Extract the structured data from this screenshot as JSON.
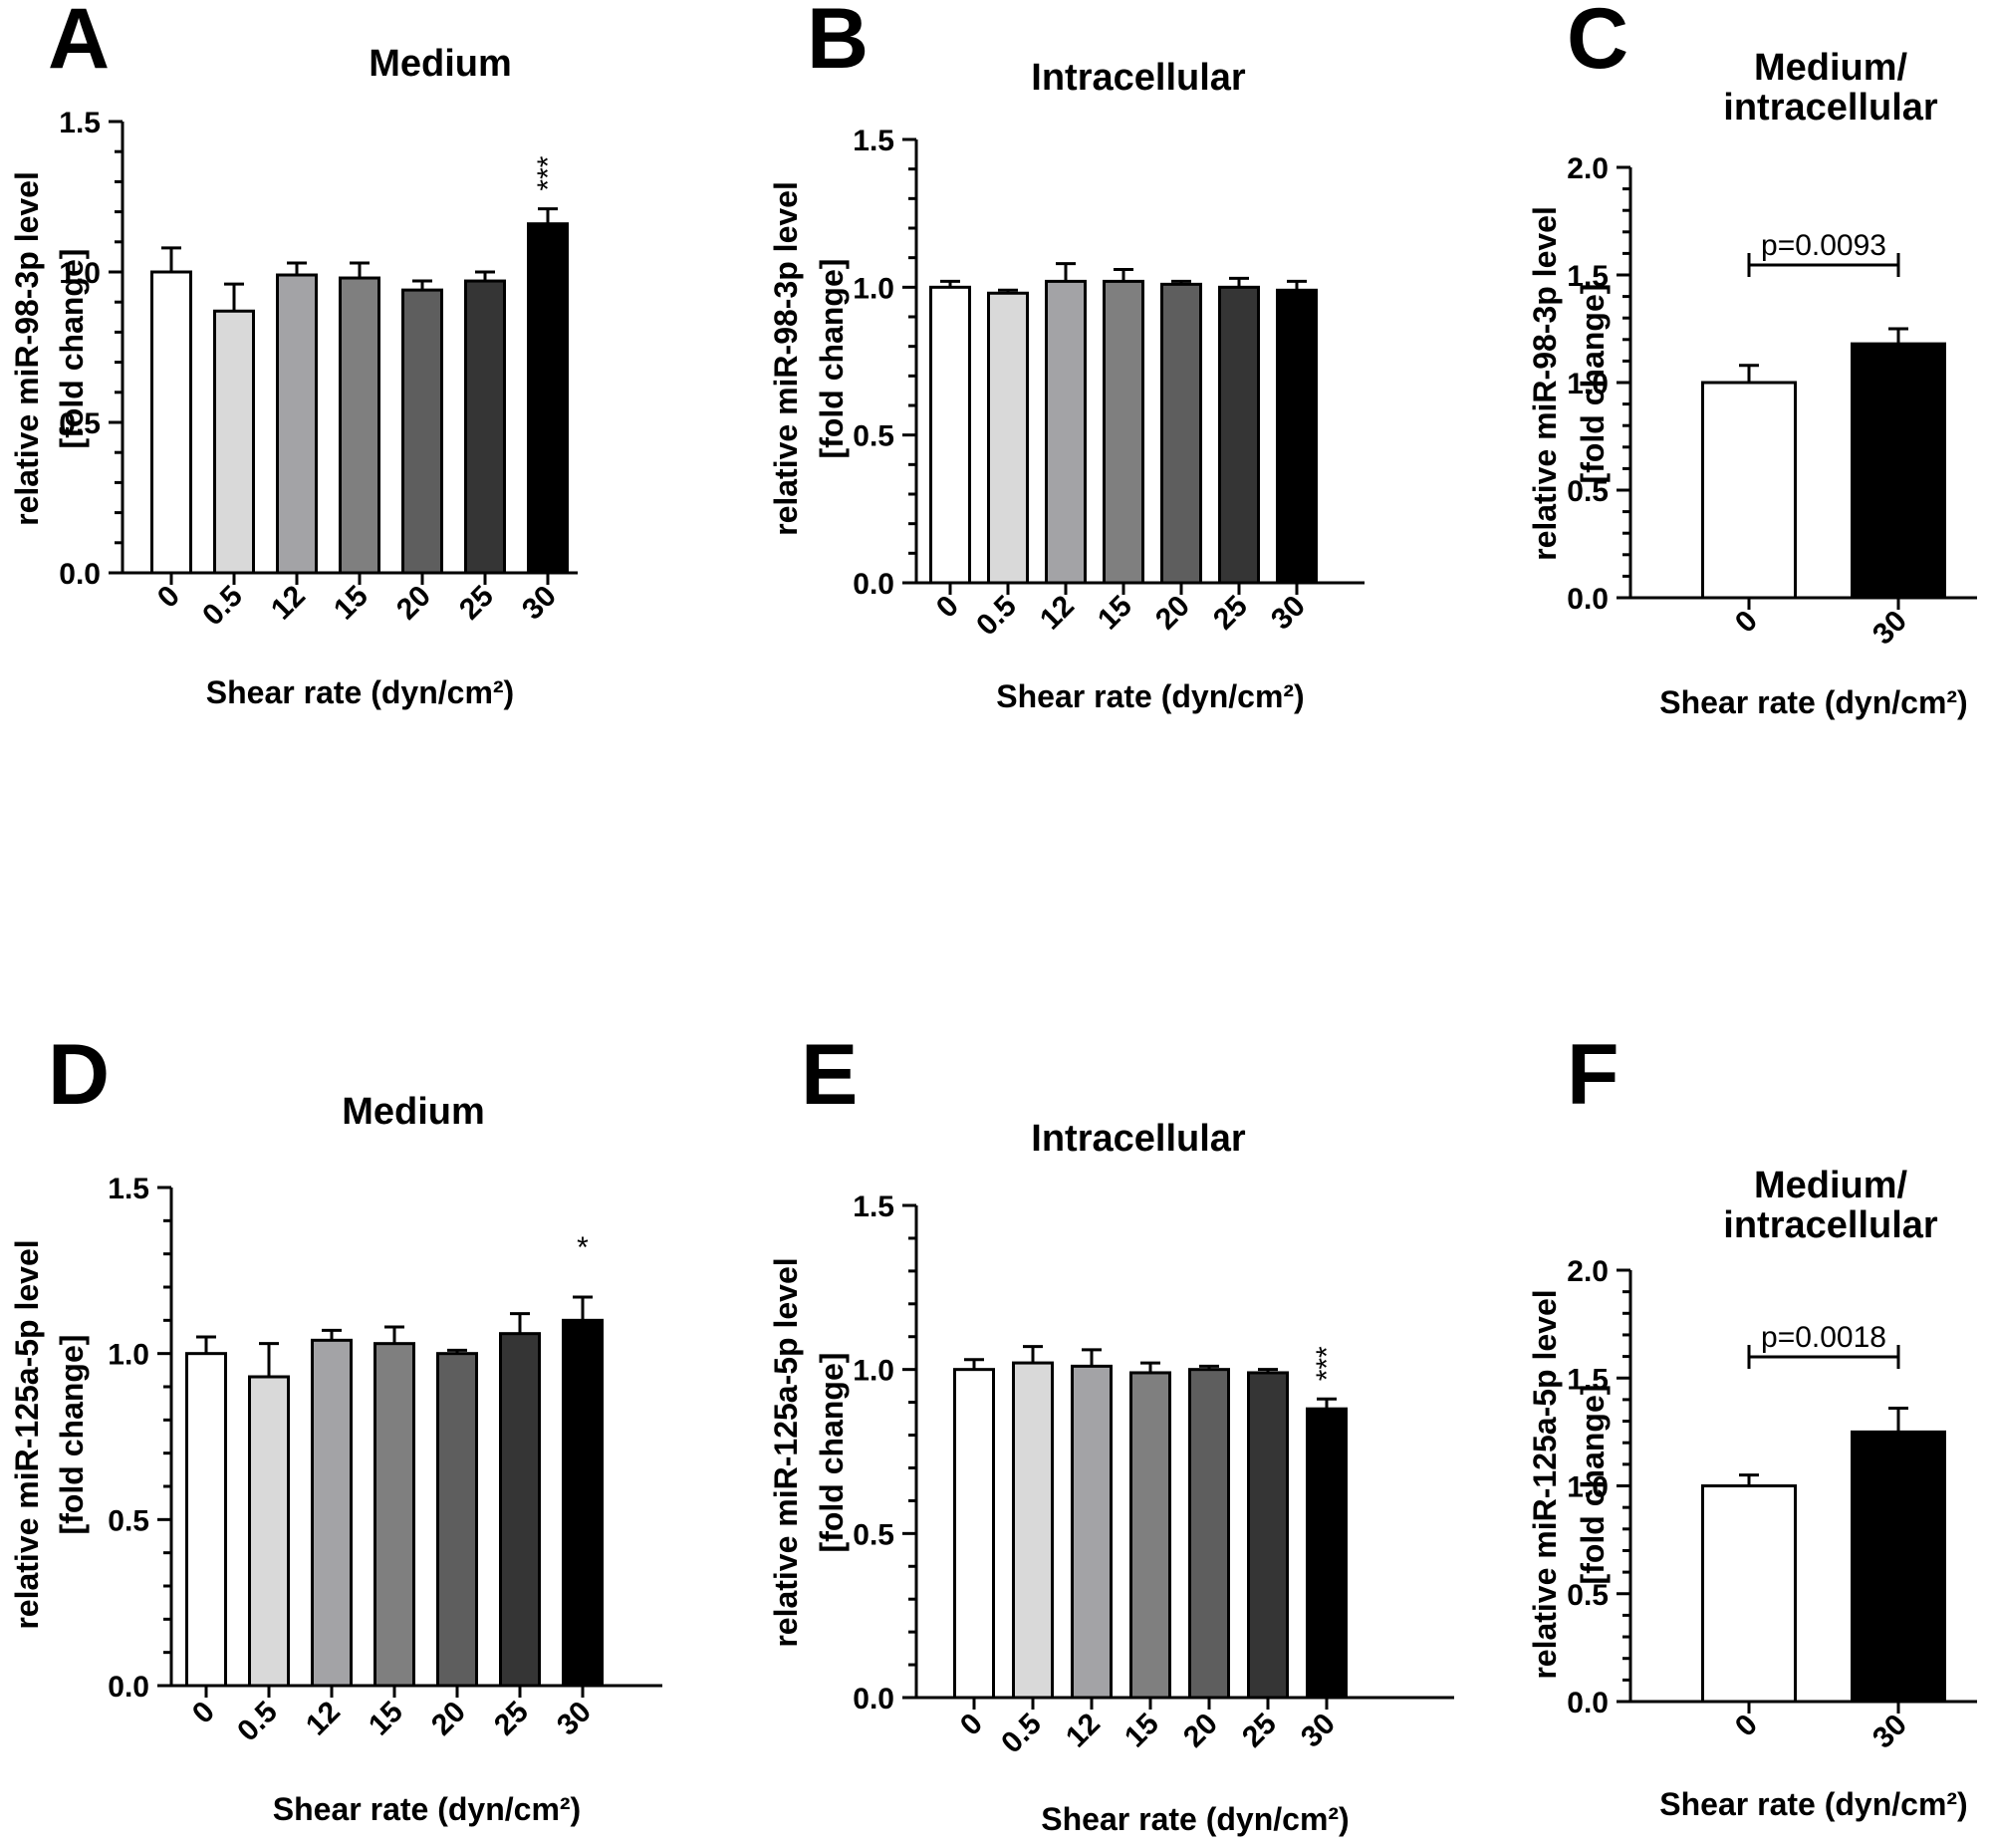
{
  "chart_data": [
    {
      "panel": "A",
      "type": "bar",
      "title": "Medium",
      "xlabel": "Shear rate (dyn/cm²)",
      "ylabel": [
        "relative miR-98-3p level",
        "[fold change]"
      ],
      "ylim": [
        0,
        1.5
      ],
      "yticks": [
        "0.0",
        "0.5",
        "1.0",
        "1.5"
      ],
      "categories": [
        "0",
        "0.5",
        "12",
        "15",
        "20",
        "25",
        "30"
      ],
      "values": [
        1.0,
        0.87,
        0.99,
        0.98,
        0.94,
        0.97,
        1.16
      ],
      "errors": [
        0.08,
        0.09,
        0.04,
        0.05,
        0.03,
        0.03,
        0.05
      ],
      "colors": [
        "#ffffff",
        "#d9d9d9",
        "#a3a3a6",
        "#7f7f7f",
        "#5e5e5e",
        "#353535",
        "#000000"
      ],
      "significance": [
        {
          "category": "30",
          "label": "***"
        }
      ],
      "grid": false,
      "legend": "none"
    },
    {
      "panel": "B",
      "type": "bar",
      "title": "Intracellular",
      "xlabel": "Shear rate (dyn/cm²)",
      "ylabel": [
        "relative miR-98-3p level",
        "[fold change]"
      ],
      "ylim": [
        0,
        1.5
      ],
      "yticks": [
        "0.0",
        "0.5",
        "1.0",
        "1.5"
      ],
      "categories": [
        "0",
        "0.5",
        "12",
        "15",
        "20",
        "25",
        "30"
      ],
      "values": [
        1.0,
        0.98,
        1.02,
        1.02,
        1.01,
        1.0,
        0.99
      ],
      "errors": [
        0.02,
        0.01,
        0.06,
        0.04,
        0.01,
        0.03,
        0.03
      ],
      "colors": [
        "#ffffff",
        "#d9d9d9",
        "#a3a3a6",
        "#7f7f7f",
        "#5e5e5e",
        "#353535",
        "#000000"
      ],
      "significance": [],
      "grid": false,
      "legend": "none"
    },
    {
      "panel": "C",
      "type": "bar",
      "title": [
        "Medium/",
        "intracellular"
      ],
      "xlabel": "Shear rate (dyn/cm²)",
      "ylabel": [
        "relative miR-98-3p level",
        "[fold change]"
      ],
      "ylim": [
        0,
        2.0
      ],
      "yticks": [
        "0.0",
        "0.5",
        "1.0",
        "1.5",
        "2.0"
      ],
      "categories": [
        "0",
        "30"
      ],
      "values": [
        1.0,
        1.18
      ],
      "errors": [
        0.08,
        0.07
      ],
      "colors": [
        "#ffffff",
        "#000000"
      ],
      "p_value": "p=0.0093",
      "grid": false,
      "legend": "none"
    },
    {
      "panel": "D",
      "type": "bar",
      "title": "Medium",
      "xlabel": "Shear rate (dyn/cm²)",
      "ylabel": [
        "relative miR-125a-5p level",
        "[fold change]"
      ],
      "ylim": [
        0,
        1.5
      ],
      "yticks": [
        "0.0",
        "0.5",
        "1.0",
        "1.5"
      ],
      "categories": [
        "0",
        "0.5",
        "12",
        "15",
        "20",
        "25",
        "30"
      ],
      "values": [
        1.0,
        0.93,
        1.04,
        1.03,
        1.0,
        1.06,
        1.1
      ],
      "errors": [
        0.05,
        0.1,
        0.03,
        0.05,
        0.01,
        0.06,
        0.07
      ],
      "colors": [
        "#ffffff",
        "#d9d9d9",
        "#a3a3a6",
        "#7f7f7f",
        "#5e5e5e",
        "#353535",
        "#000000"
      ],
      "significance": [
        {
          "category": "30",
          "label": "*"
        }
      ],
      "grid": false,
      "legend": "none"
    },
    {
      "panel": "E",
      "type": "bar",
      "title": "Intracellular",
      "xlabel": "Shear rate (dyn/cm²)",
      "ylabel": [
        "relative miR-125a-5p level",
        "[fold change]"
      ],
      "ylim": [
        0,
        1.5
      ],
      "yticks": [
        "0.0",
        "0.5",
        "1.0",
        "1.5"
      ],
      "categories": [
        "0",
        "0.5",
        "12",
        "15",
        "20",
        "25",
        "30"
      ],
      "values": [
        1.0,
        1.02,
        1.01,
        0.99,
        1.0,
        0.99,
        0.88
      ],
      "errors": [
        0.03,
        0.05,
        0.05,
        0.03,
        0.01,
        0.01,
        0.03
      ],
      "colors": [
        "#ffffff",
        "#d9d9d9",
        "#a3a3a6",
        "#7f7f7f",
        "#5e5e5e",
        "#353535",
        "#000000"
      ],
      "significance": [
        {
          "category": "30",
          "label": "***"
        }
      ],
      "grid": false,
      "legend": "none"
    },
    {
      "panel": "F",
      "type": "bar",
      "title": [
        "Medium/",
        "intracellular"
      ],
      "xlabel": "Shear rate (dyn/cm²)",
      "ylabel": [
        "relative miR-125a-5p level",
        "[fold change]"
      ],
      "ylim": [
        0,
        2.0
      ],
      "yticks": [
        "0.0",
        "0.5",
        "1.0",
        "1.5",
        "2.0"
      ],
      "categories": [
        "0",
        "30"
      ],
      "values": [
        1.0,
        1.25
      ],
      "errors": [
        0.05,
        0.11
      ],
      "colors": [
        "#ffffff",
        "#000000"
      ],
      "p_value": "p=0.0018",
      "grid": false,
      "legend": "none"
    }
  ]
}
